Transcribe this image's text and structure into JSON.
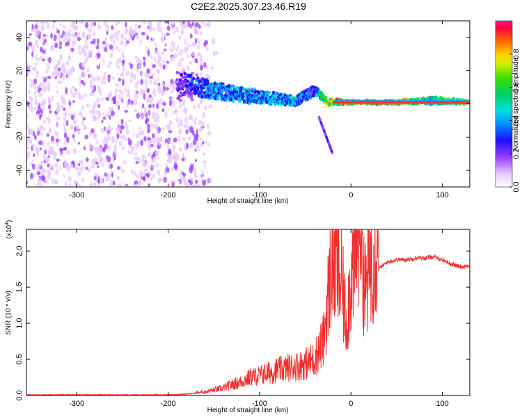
{
  "chart_data": [
    {
      "type": "heatmap",
      "title": "C2E2.2025.307.23.46.R19",
      "xlabel": "Height of straight line (km)",
      "ylabel": "Frequency (Hz)",
      "xlim": [
        -355,
        130
      ],
      "ylim": [
        -50,
        50
      ],
      "xticks": [
        -300,
        -200,
        -100,
        0,
        100
      ],
      "yticks": [
        -40,
        -20,
        0,
        20,
        40
      ],
      "colorbar": {
        "label": "Normalized spectral amplitude",
        "range": [
          0,
          1
        ],
        "ticks": [
          0.0,
          0.2,
          0.4,
          0.6,
          0.8
        ]
      },
      "description_points": [
        {
          "x": -350,
          "y_center": 0,
          "spread": 50,
          "amplitude": 0.12
        },
        {
          "x": -180,
          "y_center": 12,
          "spread": 6,
          "amplitude": 0.35
        },
        {
          "x": -150,
          "y_center": 8,
          "spread": 5,
          "amplitude": 0.5
        },
        {
          "x": -100,
          "y_center": 4,
          "spread": 4,
          "amplitude": 0.5
        },
        {
          "x": -60,
          "y_center": 2,
          "spread": 3,
          "amplitude": 0.55
        },
        {
          "x": -40,
          "y_center": 8,
          "spread": 3,
          "amplitude": 0.4
        },
        {
          "x": -25,
          "y_center": 1,
          "spread": 2,
          "amplitude": 0.9
        },
        {
          "x": 0,
          "y_center": 1,
          "spread": 1,
          "amplitude": 0.95
        },
        {
          "x": 50,
          "y_center": 1,
          "spread": 1,
          "amplitude": 1.0
        },
        {
          "x": 90,
          "y_center": 2,
          "spread": 2,
          "amplitude": 0.6
        },
        {
          "x": 130,
          "y_center": 1,
          "spread": 1,
          "amplitude": 0.95
        }
      ]
    },
    {
      "type": "line",
      "title": "",
      "xlabel": "Height of straight line (km)",
      "ylabel": "SNR (10 * v/v)",
      "scale_label": "(x10",
      "scale_exp": "4",
      "xlim": [
        -355,
        130
      ],
      "ylim": [
        0,
        2.3
      ],
      "xticks": [
        -300,
        -200,
        -100,
        0,
        100
      ],
      "yticks": [
        "0.0",
        "0.5",
        "1.0",
        "1.5",
        "2.0"
      ],
      "series": [
        {
          "name": "SNR",
          "color": "#f03030",
          "x": [
            -355,
            -300,
            -250,
            -200,
            -180,
            -160,
            -150,
            -140,
            -130,
            -120,
            -110,
            -100,
            -90,
            -80,
            -70,
            -60,
            -50,
            -40,
            -30,
            -25,
            -20,
            -15,
            -10,
            -5,
            0,
            5,
            10,
            15,
            20,
            25,
            30,
            40,
            50,
            60,
            70,
            80,
            90,
            100,
            110,
            120,
            130
          ],
          "y": [
            0.01,
            0.01,
            0.01,
            0.01,
            0.02,
            0.04,
            0.06,
            0.08,
            0.12,
            0.15,
            0.2,
            0.22,
            0.25,
            0.28,
            0.3,
            0.32,
            0.35,
            0.4,
            0.6,
            1.1,
            1.5,
            1.4,
            1.2,
            0.8,
            1.3,
            1.5,
            2.2,
            1.1,
            1.4,
            1.6,
            1.75,
            1.85,
            1.88,
            1.88,
            1.9,
            1.9,
            1.92,
            1.88,
            1.82,
            1.78,
            1.8
          ]
        }
      ]
    }
  ]
}
